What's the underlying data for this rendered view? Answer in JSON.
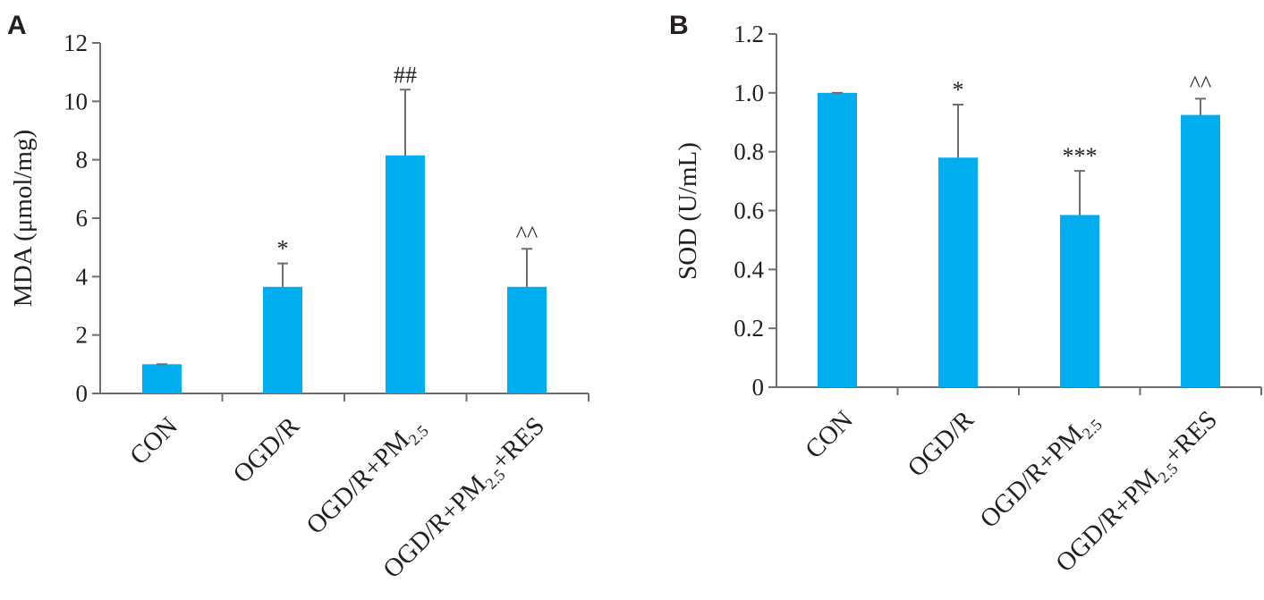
{
  "chart_data": [
    {
      "type": "bar",
      "panel_label": "A",
      "categories": [
        {
          "base": "CON"
        },
        {
          "base": "OGD/R"
        },
        {
          "base": "OGD/R+PM",
          "sub": "2.5"
        },
        {
          "base": "OGD/R+PM",
          "sub": "2.5",
          "tail": "+RES"
        }
      ],
      "values": [
        1.0,
        3.65,
        8.15,
        3.65
      ],
      "errors": [
        0.0,
        0.8,
        2.25,
        1.3
      ],
      "significance": [
        "",
        "*",
        "##",
        "^^"
      ],
      "ylabel": "MDA (μmol/mg)",
      "ylim": [
        0,
        12
      ],
      "yticks": [
        0,
        2,
        4,
        6,
        8,
        10,
        12
      ],
      "ytick_labels": [
        "0",
        "2",
        "4",
        "6",
        "8",
        "10",
        "12"
      ],
      "bar_color": "#00aeef"
    },
    {
      "type": "bar",
      "panel_label": "B",
      "categories": [
        {
          "base": "CON"
        },
        {
          "base": "OGD/R"
        },
        {
          "base": "OGD/R+PM",
          "sub": "2.5"
        },
        {
          "base": "OGD/R+PM",
          "sub": "2.5",
          "tail": "+RES"
        }
      ],
      "values": [
        1.0,
        0.78,
        0.585,
        0.925
      ],
      "errors": [
        0.0,
        0.18,
        0.15,
        0.055
      ],
      "significance": [
        "",
        "*",
        "***",
        "^^"
      ],
      "ylabel": "SOD (U/mL)",
      "ylim": [
        0,
        1.2
      ],
      "yticks": [
        0,
        0.2,
        0.4,
        0.6,
        0.8,
        1.0,
        1.2
      ],
      "ytick_labels": [
        "0",
        "0.2",
        "0.4",
        "0.6",
        "0.8",
        "1.0",
        "1.2"
      ],
      "bar_color": "#00aeef"
    }
  ]
}
